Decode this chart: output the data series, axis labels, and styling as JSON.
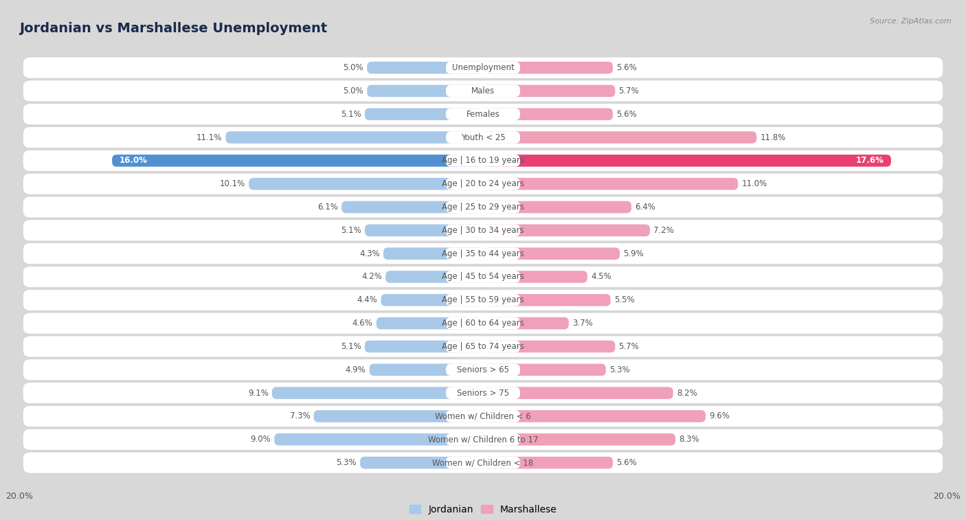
{
  "title": "Jordanian vs Marshallese Unemployment",
  "source": "Source: ZipAtlas.com",
  "categories": [
    "Unemployment",
    "Males",
    "Females",
    "Youth < 25",
    "Age | 16 to 19 years",
    "Age | 20 to 24 years",
    "Age | 25 to 29 years",
    "Age | 30 to 34 years",
    "Age | 35 to 44 years",
    "Age | 45 to 54 years",
    "Age | 55 to 59 years",
    "Age | 60 to 64 years",
    "Age | 65 to 74 years",
    "Seniors > 65",
    "Seniors > 75",
    "Women w/ Children < 6",
    "Women w/ Children 6 to 17",
    "Women w/ Children < 18"
  ],
  "jordanian": [
    5.0,
    5.0,
    5.1,
    11.1,
    16.0,
    10.1,
    6.1,
    5.1,
    4.3,
    4.2,
    4.4,
    4.6,
    5.1,
    4.9,
    9.1,
    7.3,
    9.0,
    5.3
  ],
  "marshallese": [
    5.6,
    5.7,
    5.6,
    11.8,
    17.6,
    11.0,
    6.4,
    7.2,
    5.9,
    4.5,
    5.5,
    3.7,
    5.7,
    5.3,
    8.2,
    9.6,
    8.3,
    5.6
  ],
  "jordanian_color": "#a8c8e8",
  "marshallese_color": "#f0a0b8",
  "jordanian_highlight": "#5090d0",
  "marshallese_highlight": "#e84070",
  "row_bg_white": "#ffffff",
  "row_bg_gray": "#e8e8e8",
  "outer_bg": "#d8d8d8",
  "max_val": 20.0,
  "legend_jordanian": "Jordanian",
  "legend_marshallese": "Marshallese",
  "label_fontsize": 8.5,
  "title_fontsize": 14
}
